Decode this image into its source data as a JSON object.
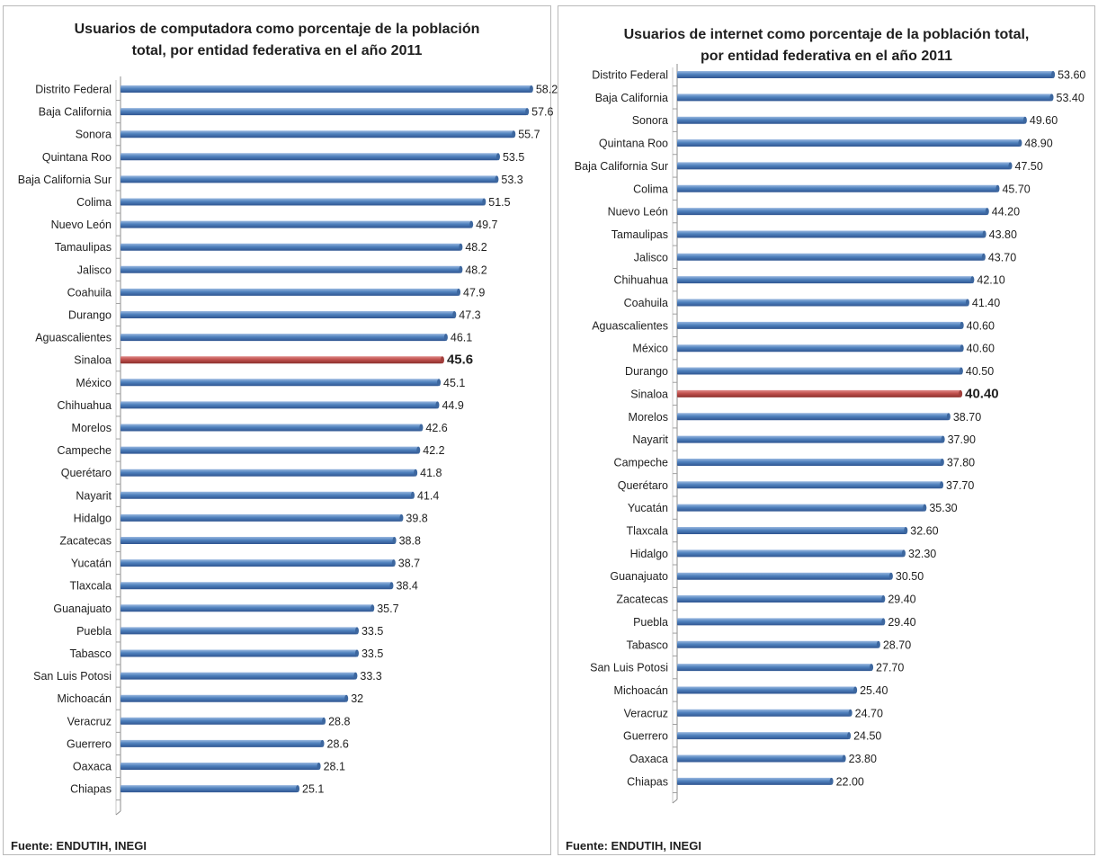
{
  "colors": {
    "bar": "#4f81bd",
    "highlight": "#c0504d"
  },
  "chart_data": [
    {
      "type": "bar",
      "orientation": "horizontal",
      "title_lines": [
        "Usuarios de computadora  como porcentaje de la población",
        "total, por entidad federativa en el año 2011"
      ],
      "source": "Fuente: ENDUTIH, INEGI",
      "xlim": [
        0,
        60
      ],
      "grid": false,
      "highlight": "Sinaloa",
      "categories": [
        "Distrito Federal",
        "Baja California",
        "Sonora",
        "Quintana Roo",
        "Baja California Sur",
        "Colima",
        "Nuevo León",
        "Tamaulipas",
        "Jalisco",
        "Coahuila",
        "Durango",
        "Aguascalientes",
        "Sinaloa",
        "México",
        "Chihuahua",
        "Morelos",
        "Campeche",
        "Querétaro",
        "Nayarit",
        "Hidalgo",
        "Zacatecas",
        "Yucatán",
        "Tlaxcala",
        "Guanajuato",
        "Puebla",
        "Tabasco",
        "San Luis Potosi",
        "Michoacán",
        "Veracruz",
        "Guerrero",
        "Oaxaca",
        "Chiapas"
      ],
      "values": [
        58.2,
        57.6,
        55.7,
        53.5,
        53.3,
        51.5,
        49.7,
        48.2,
        48.2,
        47.9,
        47.3,
        46.1,
        45.6,
        45.1,
        44.9,
        42.6,
        42.2,
        41.8,
        41.4,
        39.8,
        38.8,
        38.7,
        38.4,
        35.7,
        33.5,
        33.5,
        33.3,
        32,
        28.8,
        28.6,
        28.1,
        25.1
      ],
      "value_labels": [
        "58.2",
        "57.6",
        "55.7",
        "53.5",
        "53.3",
        "51.5",
        "49.7",
        "48.2",
        "48.2",
        "47.9",
        "47.3",
        "46.1",
        "45.6",
        "45.1",
        "44.9",
        "42.6",
        "42.2",
        "41.8",
        "41.4",
        "39.8",
        "38.8",
        "38.7",
        "38.4",
        "35.7",
        "33.5",
        "33.5",
        "33.3",
        "32",
        "28.8",
        "28.6",
        "28.1",
        "25.1"
      ]
    },
    {
      "type": "bar",
      "orientation": "horizontal",
      "title_lines": [
        "Usuarios de internet como porcentaje de la población total,",
        "por entidad federativa en el año 2011"
      ],
      "source": "Fuente: ENDUTIH, INEGI",
      "xlim": [
        0,
        60
      ],
      "grid": false,
      "highlight": "Sinaloa",
      "categories": [
        "Distrito Federal",
        "Baja California",
        "Sonora",
        "Quintana Roo",
        "Baja California Sur",
        "Colima",
        "Nuevo León",
        "Tamaulipas",
        "Jalisco",
        "Chihuahua",
        "Coahuila",
        "Aguascalientes",
        "México",
        "Durango",
        "Sinaloa",
        "Morelos",
        "Nayarit",
        "Campeche",
        "Querétaro",
        "Yucatán",
        "Tlaxcala",
        "Hidalgo",
        "Guanajuato",
        "Zacatecas",
        "Puebla",
        "Tabasco",
        "San Luis Potosi",
        "Michoacán",
        "Veracruz",
        "Guerrero",
        "Oaxaca",
        "Chiapas"
      ],
      "values": [
        53.6,
        53.4,
        49.6,
        48.9,
        47.5,
        45.7,
        44.2,
        43.8,
        43.7,
        42.1,
        41.4,
        40.6,
        40.6,
        40.5,
        40.4,
        38.7,
        37.9,
        37.8,
        37.7,
        35.3,
        32.6,
        32.3,
        30.5,
        29.4,
        29.4,
        28.7,
        27.7,
        25.4,
        24.7,
        24.5,
        23.8,
        22.0
      ],
      "value_labels": [
        "53.60",
        "53.40",
        "49.60",
        "48.90",
        "47.50",
        "45.70",
        "44.20",
        "43.80",
        "43.70",
        "42.10",
        "41.40",
        "40.60",
        "40.60",
        "40.50",
        "40.40",
        "38.70",
        "37.90",
        "37.80",
        "37.70",
        "35.30",
        "32.60",
        "32.30",
        "30.50",
        "29.40",
        "29.40",
        "28.70",
        "27.70",
        "25.40",
        "24.70",
        "24.50",
        "23.80",
        "22.00"
      ]
    }
  ]
}
